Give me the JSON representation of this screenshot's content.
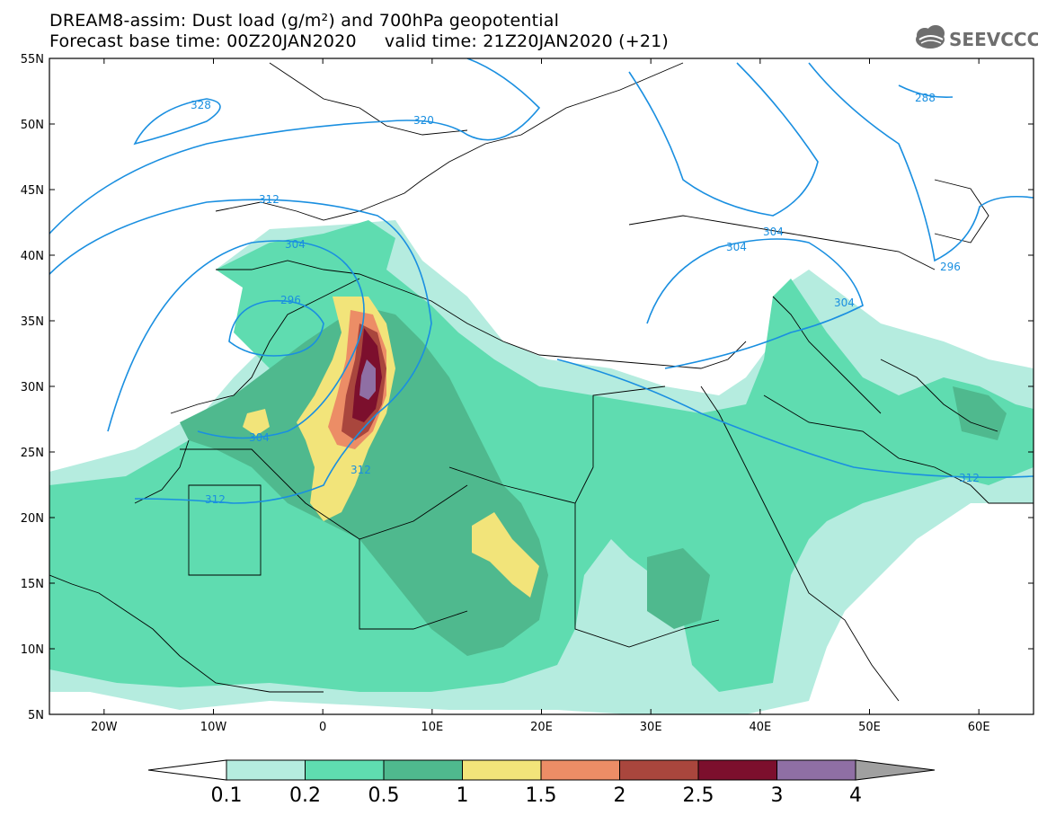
{
  "title": {
    "line1": "DREAM8-assim: Dust load (g/m²) and 700hPa geopotential",
    "line2": "Forecast base time: 00Z20JAN2020     valid time: 21Z20JAN2020 (+21)"
  },
  "logo": {
    "text": "SEEVCCC",
    "icon": "cloud-icon"
  },
  "map": {
    "lon_range": [
      -25,
      65
    ],
    "lat_range": [
      5,
      55
    ],
    "lat_ticks": [
      "5N",
      "10N",
      "15N",
      "20N",
      "25N",
      "30N",
      "35N",
      "40N",
      "45N",
      "50N",
      "55N"
    ],
    "lon_ticks": [
      "20W",
      "10W",
      "0",
      "10E",
      "20E",
      "30E",
      "40E",
      "50E",
      "60E"
    ]
  },
  "contours": {
    "color": "#1a8fe0",
    "labels": [
      "328",
      "320",
      "312",
      "304",
      "296",
      "304",
      "312",
      "312",
      "304",
      "304",
      "288",
      "296",
      "304",
      "312"
    ]
  },
  "colorbar": {
    "labels": [
      "0.1",
      "0.2",
      "0.5",
      "1",
      "1.5",
      "2",
      "2.5",
      "3",
      "4"
    ],
    "colors": [
      "#ffffff",
      "#b5ecdf",
      "#5fdcb0",
      "#4fb98e",
      "#f2e47a",
      "#ec8d66",
      "#a9463d",
      "#7c0f2d",
      "#8f6fa4",
      "#a0a0a0"
    ]
  },
  "dust_colors": {
    "c1": "#b5ecdf",
    "c2": "#5fdcb0",
    "c3": "#4fb98e",
    "c4": "#f2e47a",
    "c5": "#ec8d66",
    "c6": "#a9463d",
    "c7": "#7c0f2d",
    "c8": "#8f6fa4"
  }
}
